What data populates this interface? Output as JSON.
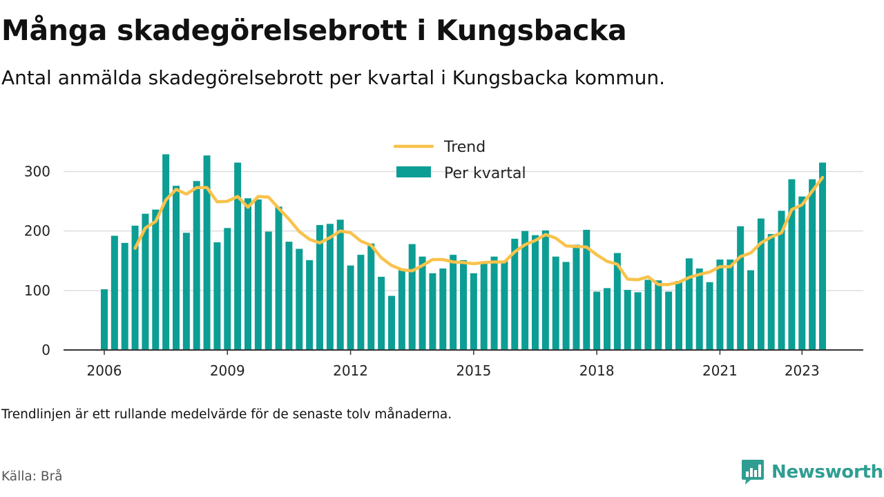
{
  "header": {
    "title": "Många skadegörelsebrott i Kungsbacka",
    "subtitle": "Antal anmälda skadegörelsebrott per kvartal i Kungsbacka kommun."
  },
  "footer": {
    "note": "Trendlinjen är ett rullande medelvärde för de senaste tolv månaderna.",
    "source": "Källa: Brå",
    "brand": "Newsworthy"
  },
  "colors": {
    "bar": "#0c9e94",
    "trend": "#f9c24b",
    "grid": "#dddddd",
    "axis": "#333333",
    "brand": "#2f9e92"
  },
  "chart_data": {
    "type": "bar",
    "title": "Många skadegörelsebrott i Kungsbacka",
    "subtitle": "Antal anmälda skadegörelsebrott per kvartal i Kungsbacka kommun.",
    "xlabel": "",
    "ylabel": "",
    "ylim": [
      0,
      340
    ],
    "yticks": [
      0,
      100,
      200,
      300
    ],
    "xticks": [
      "2006",
      "2009",
      "2012",
      "2015",
      "2018",
      "2021",
      "2023"
    ],
    "xtick_positions": [
      2006,
      2009,
      2012,
      2015,
      2018,
      2021,
      2023
    ],
    "x": [
      2006.0,
      2006.25,
      2006.5,
      2006.75,
      2007.0,
      2007.25,
      2007.5,
      2007.75,
      2008.0,
      2008.25,
      2008.5,
      2008.75,
      2009.0,
      2009.25,
      2009.5,
      2009.75,
      2010.0,
      2010.25,
      2010.5,
      2010.75,
      2011.0,
      2011.25,
      2011.5,
      2011.75,
      2012.0,
      2012.25,
      2012.5,
      2012.75,
      2013.0,
      2013.25,
      2013.5,
      2013.75,
      2014.0,
      2014.25,
      2014.5,
      2014.75,
      2015.0,
      2015.25,
      2015.5,
      2015.75,
      2016.0,
      2016.25,
      2016.5,
      2016.75,
      2017.0,
      2017.25,
      2017.5,
      2017.75,
      2018.0,
      2018.25,
      2018.5,
      2018.75,
      2019.0,
      2019.25,
      2019.5,
      2019.75,
      2020.0,
      2020.25,
      2020.5,
      2020.75,
      2021.0,
      2021.25,
      2021.5,
      2021.75,
      2022.0,
      2022.25,
      2022.5,
      2022.75,
      2023.0,
      2023.25,
      2023.5
    ],
    "legend_position": "top-center",
    "series": [
      {
        "name": "Per kvartal",
        "kind": "bar",
        "values": [
          102,
          192,
          180,
          209,
          229,
          236,
          329,
          276,
          197,
          284,
          327,
          181,
          205,
          315,
          255,
          253,
          199,
          241,
          182,
          170,
          151,
          210,
          212,
          219,
          142,
          160,
          179,
          123,
          91,
          134,
          178,
          157,
          129,
          137,
          160,
          151,
          129,
          149,
          157,
          149,
          187,
          200,
          193,
          201,
          157,
          148,
          177,
          202,
          98,
          104,
          163,
          101,
          97,
          118,
          117,
          98,
          116,
          154,
          137,
          114,
          152,
          152,
          208,
          134,
          221,
          195,
          234,
          287,
          258,
          287,
          315
        ]
      },
      {
        "name": "Trend",
        "kind": "line",
        "x": [
          2006.75,
          2007.0,
          2007.25,
          2007.5,
          2007.75,
          2008.0,
          2008.25,
          2008.5,
          2008.75,
          2009.0,
          2009.25,
          2009.5,
          2009.75,
          2010.0,
          2010.25,
          2010.5,
          2010.75,
          2011.0,
          2011.25,
          2011.5,
          2011.75,
          2012.0,
          2012.25,
          2012.5,
          2012.75,
          2013.0,
          2013.25,
          2013.5,
          2013.75,
          2014.0,
          2014.25,
          2014.5,
          2014.75,
          2015.0,
          2015.25,
          2015.5,
          2015.75,
          2016.0,
          2016.25,
          2016.5,
          2016.75,
          2017.0,
          2017.25,
          2017.5,
          2017.75,
          2018.0,
          2018.25,
          2018.5,
          2018.75,
          2019.0,
          2019.25,
          2019.5,
          2019.75,
          2020.0,
          2020.25,
          2020.5,
          2020.75,
          2021.0,
          2021.25,
          2021.5,
          2021.75,
          2022.0,
          2022.25,
          2022.5,
          2022.75,
          2023.0,
          2023.25,
          2023.5
        ],
        "values": [
          171,
          205,
          216,
          252,
          270,
          262,
          273,
          273,
          249,
          250,
          258,
          240,
          258,
          257,
          238,
          220,
          199,
          186,
          180,
          189,
          200,
          197,
          183,
          176,
          155,
          142,
          135,
          133,
          142,
          152,
          152,
          148,
          147,
          145,
          147,
          148,
          148,
          165,
          177,
          184,
          194,
          188,
          175,
          174,
          173,
          160,
          149,
          144,
          119,
          118,
          123,
          110,
          110,
          114,
          122,
          127,
          131,
          140,
          140,
          157,
          163,
          180,
          190,
          197,
          236,
          244,
          267,
          290
        ]
      }
    ]
  }
}
